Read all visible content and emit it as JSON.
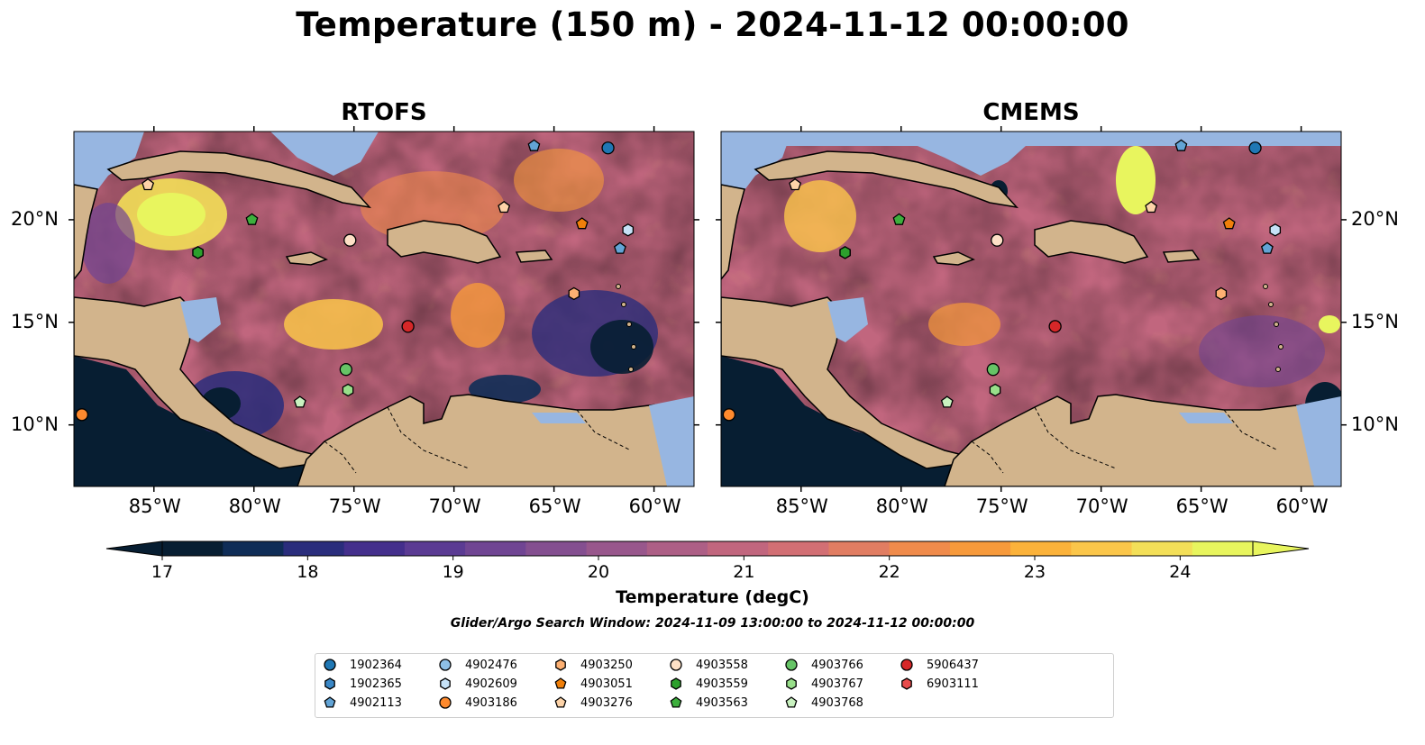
{
  "title": "Temperature (150 m) - 2024-11-12 00:00:00",
  "panels": [
    {
      "title": "RTOFS"
    },
    {
      "title": "CMEMS"
    }
  ],
  "lon_ticks": [
    "85°W",
    "80°W",
    "75°W",
    "70°W",
    "65°W",
    "60°W"
  ],
  "lat_ticks": [
    "20°N",
    "15°N",
    "10°N"
  ],
  "colorbar": {
    "title": "Temperature (degC)",
    "ticks": [
      "17",
      "18",
      "19",
      "20",
      "21",
      "22",
      "23",
      "24"
    ],
    "range": [
      17,
      24.5
    ],
    "extend": "both",
    "colors": [
      "#071e32",
      "#0f2d57",
      "#2a2d7c",
      "#442f8c",
      "#5b3b93",
      "#704593",
      "#844f90",
      "#98578c",
      "#ad5f86",
      "#c1667e",
      "#d26f74",
      "#e17d62",
      "#f08b4b",
      "#f79a3b",
      "#fbb23a",
      "#fbc64a",
      "#f3df58",
      "#e8f55e"
    ]
  },
  "subtitle": "Glider/Argo Search Window: 2024-11-09 13:00:00 to 2024-11-12 00:00:00",
  "colors": {
    "land": "#d2b48c",
    "shallow": "#97b6e1",
    "border": "#000000"
  },
  "legend": [
    {
      "id": "1902364",
      "marker": "circle",
      "color": "#1f77b4"
    },
    {
      "id": "1902365",
      "marker": "hexagon",
      "color": "#3a87c6"
    },
    {
      "id": "4902113",
      "marker": "pentagon",
      "color": "#62a4d6"
    },
    {
      "id": "4902476",
      "marker": "circle",
      "color": "#8ec0e6"
    },
    {
      "id": "4902609",
      "marker": "hexagon",
      "color": "#c6e2f7"
    },
    {
      "id": "4903186",
      "marker": "circle",
      "color": "#fe8a2e"
    },
    {
      "id": "4903250",
      "marker": "hexagon",
      "color": "#fdb072"
    },
    {
      "id": "4903051",
      "marker": "pentagon",
      "color": "#f07f0a"
    },
    {
      "id": "4903276",
      "marker": "pentagon",
      "color": "#fdd3a8"
    },
    {
      "id": "4903558",
      "marker": "circle",
      "color": "#fde0c6"
    },
    {
      "id": "4903559",
      "marker": "hexagon",
      "color": "#2ca02c"
    },
    {
      "id": "4903563",
      "marker": "pentagon",
      "color": "#3daf3d"
    },
    {
      "id": "4903766",
      "marker": "circle",
      "color": "#66c466"
    },
    {
      "id": "4903767",
      "marker": "hexagon",
      "color": "#98df8a"
    },
    {
      "id": "4903768",
      "marker": "pentagon",
      "color": "#c9f2c0"
    },
    {
      "id": "5906437",
      "marker": "circle",
      "color": "#d62728"
    },
    {
      "id": "6903111",
      "marker": "hexagon",
      "color": "#e74b4b"
    }
  ],
  "observations": [
    {
      "id": "1902364",
      "lon": -62.3,
      "lat": 23.5
    },
    {
      "id": "1902365",
      "lon": -82.8,
      "lat": 18.4
    },
    {
      "id": "4902113",
      "lon": -66.0,
      "lat": 23.6
    },
    {
      "id": "4902113",
      "lon": -61.7,
      "lat": 18.6
    },
    {
      "id": "4902609",
      "lon": -61.3,
      "lat": 19.5
    },
    {
      "id": "4903186",
      "lon": -88.6,
      "lat": 10.5
    },
    {
      "id": "4903250",
      "lon": -64.0,
      "lat": 16.4
    },
    {
      "id": "4903051",
      "lon": -63.6,
      "lat": 19.8
    },
    {
      "id": "4903276",
      "lon": -67.5,
      "lat": 20.6
    },
    {
      "id": "4903276",
      "lon": -85.3,
      "lat": 21.7
    },
    {
      "id": "4903558",
      "lon": -75.2,
      "lat": 19.0
    },
    {
      "id": "4903559",
      "lon": -82.8,
      "lat": 18.4
    },
    {
      "id": "4903563",
      "lon": -80.1,
      "lat": 20.0
    },
    {
      "id": "4903766",
      "lon": -75.4,
      "lat": 12.7
    },
    {
      "id": "4903767",
      "lon": -75.3,
      "lat": 11.7
    },
    {
      "id": "4903768",
      "lon": -77.7,
      "lat": 11.1
    },
    {
      "id": "5906437",
      "lon": -72.3,
      "lat": 14.8
    }
  ]
}
